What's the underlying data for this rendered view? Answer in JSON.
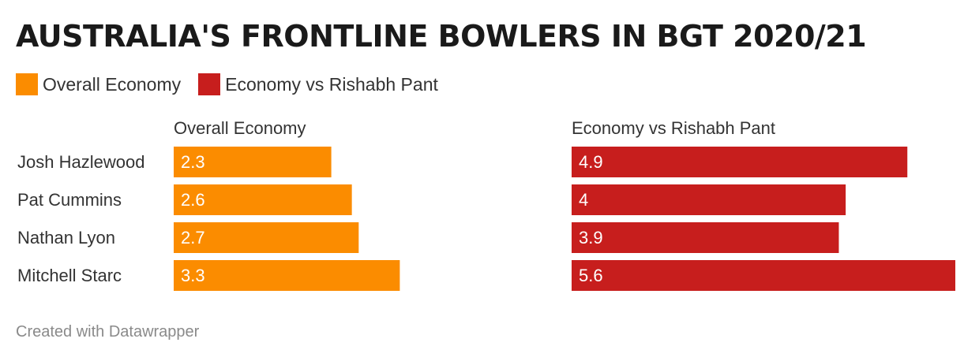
{
  "title": "AUSTRALIA'S FRONTLINE BOWLERS IN BGT 2020/21",
  "legend": [
    {
      "label": "Overall Economy",
      "color": "#fb8c00"
    },
    {
      "label": "Economy vs Rishabh Pant",
      "color": "#c71e1d"
    }
  ],
  "footer": "Created with Datawrapper",
  "chart_data": {
    "type": "bar",
    "orientation": "horizontal",
    "categories": [
      "Josh Hazlewood",
      "Pat Cummins",
      "Nathan Lyon",
      "Mitchell Starc"
    ],
    "series": [
      {
        "name": "Overall Economy",
        "values": [
          2.3,
          2.6,
          2.7,
          3.3
        ],
        "labels": [
          "2.3",
          "2.6",
          "2.7",
          "3.3"
        ],
        "color": "#fb8c00"
      },
      {
        "name": "Economy vs Rishabh Pant",
        "values": [
          4.9,
          4,
          3.9,
          5.6
        ],
        "labels": [
          "4.9",
          "4",
          "3.9",
          "5.6"
        ],
        "color": "#c71e1d"
      }
    ],
    "xlim": [
      0,
      5.6
    ],
    "grid": false
  }
}
